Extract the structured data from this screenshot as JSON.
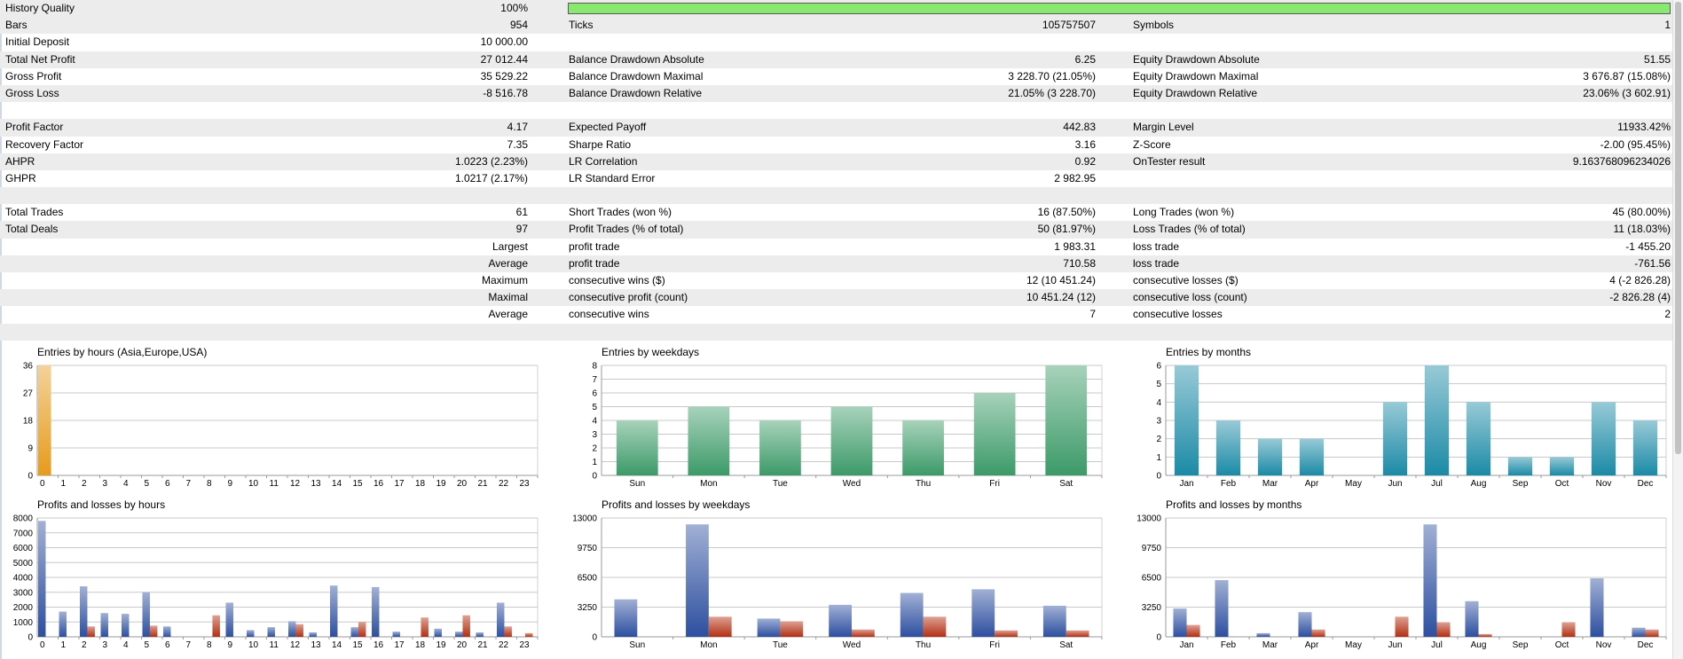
{
  "report": {
    "rows": [
      {
        "shade": true,
        "l1": "History Quality",
        "v1": "100%",
        "l2": "",
        "v2": "",
        "l3": "",
        "v3": "",
        "bar": 1.0
      },
      {
        "shade": true,
        "l1": "Bars",
        "v1": "954",
        "l2": "Ticks",
        "v2": "105757507",
        "l3": "Symbols",
        "v3": "1"
      },
      {
        "shade": false,
        "l1": "Initial Deposit",
        "v1": "10 000.00",
        "l2": "",
        "v2": "",
        "l3": "",
        "v3": ""
      },
      {
        "shade": true,
        "l1": "Total Net Profit",
        "v1": "27 012.44",
        "l2": "Balance Drawdown Absolute",
        "v2": "6.25",
        "l3": "Equity Drawdown Absolute",
        "v3": "51.55"
      },
      {
        "shade": false,
        "l1": "Gross Profit",
        "v1": "35 529.22",
        "l2": "Balance Drawdown Maximal",
        "v2": "3 228.70 (21.05%)",
        "l3": "Equity Drawdown Maximal",
        "v3": "3 676.87 (15.08%)"
      },
      {
        "shade": true,
        "l1": "Gross Loss",
        "v1": "-8 516.78",
        "l2": "Balance Drawdown Relative",
        "v2": "21.05% (3 228.70)",
        "l3": "Equity Drawdown Relative",
        "v3": "23.06% (3 602.91)"
      },
      {
        "shade": false,
        "l1": "",
        "v1": "",
        "l2": "",
        "v2": "",
        "l3": "",
        "v3": ""
      },
      {
        "shade": true,
        "l1": "Profit Factor",
        "v1": "4.17",
        "l2": "Expected Payoff",
        "v2": "442.83",
        "l3": "Margin Level",
        "v3": "11933.42%"
      },
      {
        "shade": false,
        "l1": "Recovery Factor",
        "v1": "7.35",
        "l2": "Sharpe Ratio",
        "v2": "3.16",
        "l3": "Z-Score",
        "v3": "-2.00 (95.45%)"
      },
      {
        "shade": true,
        "l1": "AHPR",
        "v1": "1.0223 (2.23%)",
        "l2": "LR Correlation",
        "v2": "0.92",
        "l3": "OnTester result",
        "v3": "9.163768096234026"
      },
      {
        "shade": false,
        "l1": "GHPR",
        "v1": "1.0217 (2.17%)",
        "l2": "LR Standard Error",
        "v2": "2 982.95",
        "l3": "",
        "v3": ""
      },
      {
        "shade": true,
        "l1": "",
        "v1": "",
        "l2": "",
        "v2": "",
        "l3": "",
        "v3": ""
      },
      {
        "shade": false,
        "l1": "Total Trades",
        "v1": "61",
        "l2": "Short Trades (won %)",
        "v2": "16 (87.50%)",
        "l3": "Long Trades (won %)",
        "v3": "45 (80.00%)"
      },
      {
        "shade": true,
        "l1": "Total Deals",
        "v1": "97",
        "l2": "Profit Trades (% of total)",
        "v2": "50 (81.97%)",
        "l3": "Loss Trades (% of total)",
        "v3": "11 (18.03%)"
      },
      {
        "shade": false,
        "l1": "",
        "v1": "Largest",
        "l2": "profit trade",
        "v2": "1 983.31",
        "l3": "loss trade",
        "v3": "-1 455.20"
      },
      {
        "shade": true,
        "l1": "",
        "v1": "Average",
        "l2": "profit trade",
        "v2": "710.58",
        "l3": "loss trade",
        "v3": "-761.56"
      },
      {
        "shade": false,
        "l1": "",
        "v1": "Maximum",
        "l2": "consecutive wins ($)",
        "v2": "12 (10 451.24)",
        "l3": "consecutive losses ($)",
        "v3": "4 (-2 826.28)"
      },
      {
        "shade": true,
        "l1": "",
        "v1": "Maximal",
        "l2": "consecutive profit (count)",
        "v2": "10 451.24 (12)",
        "l3": "consecutive loss (count)",
        "v3": "-2 826.28 (4)"
      },
      {
        "shade": false,
        "l1": "",
        "v1": "Average",
        "l2": "consecutive wins",
        "v2": "7",
        "l3": "consecutive losses",
        "v3": "2"
      },
      {
        "shade": true,
        "l1": "",
        "v1": "",
        "l2": "",
        "v2": "",
        "l3": "",
        "v3": ""
      }
    ]
  },
  "colors": {
    "history_bar": "#88e870",
    "hours_bar": "#e69b1c",
    "weekday_bar": "#3c9a68",
    "months_bar": "#1b8aa6",
    "profit_bar": "#2d4fa0",
    "loss_bar": "#b32f12",
    "grid": "#c8c8c8",
    "row_shade": "#ececec"
  },
  "chart_data": [
    {
      "type": "bar",
      "title": "Entries by hours (Asia,Europe,USA)",
      "categories": [
        "0",
        "1",
        "2",
        "3",
        "4",
        "5",
        "6",
        "7",
        "8",
        "9",
        "10",
        "11",
        "12",
        "13",
        "14",
        "15",
        "16",
        "17",
        "18",
        "19",
        "20",
        "21",
        "22",
        "23"
      ],
      "values": [
        36,
        0,
        0,
        0,
        0,
        0,
        0,
        0,
        0,
        0,
        0,
        0,
        0,
        0,
        0,
        0,
        0,
        0,
        0,
        0,
        0,
        0,
        0,
        0
      ],
      "yticks": [
        "0",
        "9",
        "18",
        "27",
        "36"
      ],
      "ylim": [
        0,
        36
      ],
      "color_key": "hours_bar",
      "grid": true
    },
    {
      "type": "bar",
      "title": "Entries by weekdays",
      "categories": [
        "Sun",
        "Mon",
        "Tue",
        "Wed",
        "Thu",
        "Fri",
        "Sat"
      ],
      "values": [
        4,
        5,
        4,
        5,
        4,
        6,
        8
      ],
      "yticks": [
        "0",
        "1",
        "2",
        "3",
        "4",
        "5",
        "6",
        "7",
        "8"
      ],
      "ylim": [
        0,
        8
      ],
      "color_key": "weekday_bar",
      "grid": true
    },
    {
      "type": "bar",
      "title": "Entries by months",
      "categories": [
        "Jan",
        "Feb",
        "Mar",
        "Apr",
        "May",
        "Jun",
        "Jul",
        "Aug",
        "Sep",
        "Oct",
        "Nov",
        "Dec"
      ],
      "values": [
        6,
        3,
        2,
        2,
        0,
        4,
        6,
        4,
        1,
        1,
        4,
        3
      ],
      "yticks": [
        "0",
        "1",
        "2",
        "3",
        "4",
        "5",
        "6"
      ],
      "ylim": [
        0,
        6
      ],
      "color_key": "months_bar",
      "grid": true
    },
    {
      "type": "bar",
      "title": "Profits and losses by hours",
      "categories": [
        "0",
        "1",
        "2",
        "3",
        "4",
        "5",
        "6",
        "7",
        "8",
        "9",
        "10",
        "11",
        "12",
        "13",
        "14",
        "15",
        "16",
        "17",
        "18",
        "19",
        "20",
        "21",
        "22",
        "23"
      ],
      "series": [
        {
          "values": [
            7800,
            1700,
            3400,
            1600,
            1550,
            3000,
            700,
            0,
            0,
            2300,
            450,
            650,
            1050,
            300,
            3450,
            650,
            3350,
            350,
            0,
            550,
            350,
            300,
            2300,
            0
          ]
        },
        {
          "values": [
            0,
            0,
            700,
            0,
            0,
            750,
            0,
            0,
            1450,
            0,
            0,
            0,
            850,
            0,
            0,
            1000,
            0,
            0,
            1300,
            0,
            1450,
            0,
            700,
            250
          ]
        }
      ],
      "yticks": [
        "0",
        "1000",
        "2000",
        "3000",
        "4000",
        "5000",
        "6000",
        "7000",
        "8000"
      ],
      "ylim": [
        0,
        8000
      ],
      "grid": true
    },
    {
      "type": "bar",
      "title": "Profits and losses by weekdays",
      "categories": [
        "Sun",
        "Mon",
        "Tue",
        "Wed",
        "Thu",
        "Fri",
        "Sat"
      ],
      "series": [
        {
          "values": [
            4100,
            12300,
            2000,
            3500,
            4800,
            5200,
            3400
          ]
        },
        {
          "values": [
            0,
            2200,
            1700,
            800,
            2200,
            700,
            700
          ]
        }
      ],
      "yticks": [
        "0",
        "3250",
        "6500",
        "9750",
        "13000"
      ],
      "ylim": [
        0,
        13000
      ],
      "grid": true
    },
    {
      "type": "bar",
      "title": "Profits and losses by months",
      "categories": [
        "Jan",
        "Feb",
        "Mar",
        "Apr",
        "May",
        "Jun",
        "Jul",
        "Aug",
        "Sep",
        "Oct",
        "Nov",
        "Dec"
      ],
      "series": [
        {
          "values": [
            3100,
            6200,
            400,
            2700,
            0,
            0,
            12300,
            3900,
            0,
            0,
            6400,
            1000
          ]
        },
        {
          "values": [
            1300,
            0,
            0,
            800,
            0,
            2200,
            1600,
            300,
            0,
            1600,
            0,
            800
          ]
        }
      ],
      "yticks": [
        "0",
        "3250",
        "6500",
        "9750",
        "13000"
      ],
      "ylim": [
        0,
        13000
      ],
      "grid": true
    }
  ]
}
